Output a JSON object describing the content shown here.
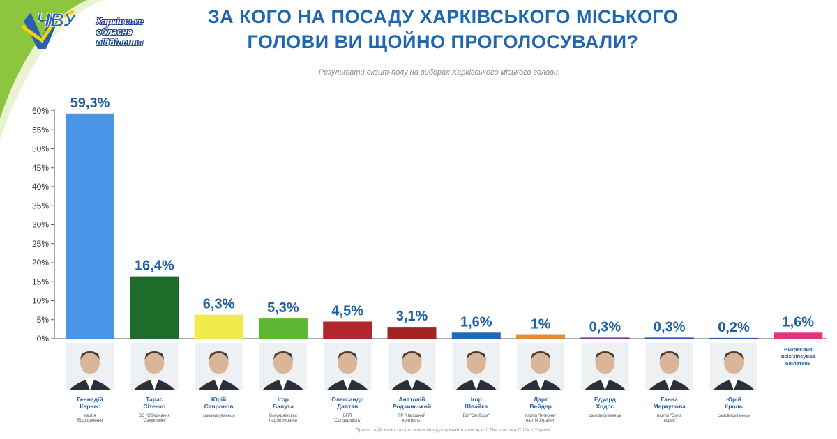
{
  "header": {
    "logo_text_lines": [
      "Харківське",
      "обласне",
      "відділення"
    ],
    "title_line1": "ЗА КОГО НА ПОСАДУ ХАРКІВСЬКОГО МІСЬКОГО",
    "title_line2": "ГОЛОВИ ВИ ЩОЙНО ПРОГОЛОСУВАЛИ?",
    "subtitle": "Результати екзит-полу на виборах Харківського міського голови."
  },
  "footnote": "Проект здійснено за підтримки Фонду сприяння демократії Посольства США в Україні.",
  "chart_data": {
    "type": "bar",
    "title": "ЗА КОГО НА ПОСАДУ ХАРКІВСЬКОГО МІСЬКОГО ГОЛОВИ ВИ ЩОЙНО ПРОГОЛОСУВАЛИ?",
    "ylim": [
      0,
      60
    ],
    "yticks": [
      "0%",
      "5%",
      "10%",
      "15%",
      "20%",
      "25%",
      "30%",
      "35%",
      "40%",
      "45%",
      "50%",
      "55%",
      "60%"
    ],
    "grid": false,
    "values": [
      59.3,
      16.4,
      6.3,
      5.3,
      4.5,
      3.1,
      1.6,
      1.0,
      0.3,
      0.3,
      0.2,
      1.6
    ],
    "value_labels": [
      "59,3%",
      "16,4%",
      "6,3%",
      "5,3%",
      "4,5%",
      "3,1%",
      "1,6%",
      "1%",
      "0,3%",
      "0,3%",
      "0,2%",
      "1,6%"
    ],
    "colors": [
      "#4b95e8",
      "#1f6b2a",
      "#f1ea4b",
      "#5cb832",
      "#b3262e",
      "#a3231f",
      "#2268b6",
      "#e58a3a",
      "#7a3a90",
      "#2a57a8",
      "#2a57a8",
      "#e0357e"
    ],
    "categories": [
      {
        "name": [
          "Геннадій",
          "Кернес"
        ],
        "party": [
          "партія",
          "\"Відродження\""
        ]
      },
      {
        "name": [
          "Тарас",
          "Сітенко"
        ],
        "party": [
          "ВО \"Об'єднання",
          "\"Самопоміч\""
        ]
      },
      {
        "name": [
          "Юрій",
          "Сапронов"
        ],
        "party": [
          "самовисуванець"
        ]
      },
      {
        "name": [
          "Ігор",
          "Балута"
        ],
        "party": [
          "Всеукраїнська",
          "партія України"
        ]
      },
      {
        "name": [
          "Олександр",
          "Давтян"
        ],
        "party": [
          "БПП",
          "\"Солідарність\""
        ]
      },
      {
        "name": [
          "Анатолій",
          "Родзинський"
        ],
        "party": [
          "ГР \"Народний",
          "контроль\""
        ]
      },
      {
        "name": [
          "Ігор",
          "Швайка"
        ],
        "party": [
          "ВО \"Свобода\""
        ]
      },
      {
        "name": [
          "Дарт",
          "Вейдер"
        ],
        "party": [
          "партія \"Інтернет",
          "партія України\""
        ]
      },
      {
        "name": [
          "Едуард",
          "Ходос"
        ],
        "party": [
          "самовисуванець"
        ]
      },
      {
        "name": [
          "Ганна",
          "Меркулова"
        ],
        "party": [
          "партія \"Сила",
          "людей\""
        ]
      },
      {
        "name": [
          "Юрій",
          "Кроль"
        ],
        "party": [
          "самовисуванець"
        ]
      },
      {
        "name": [
          "Викреслив",
          "всіх/зіпсував",
          "бюлетень"
        ],
        "party": []
      }
    ]
  }
}
